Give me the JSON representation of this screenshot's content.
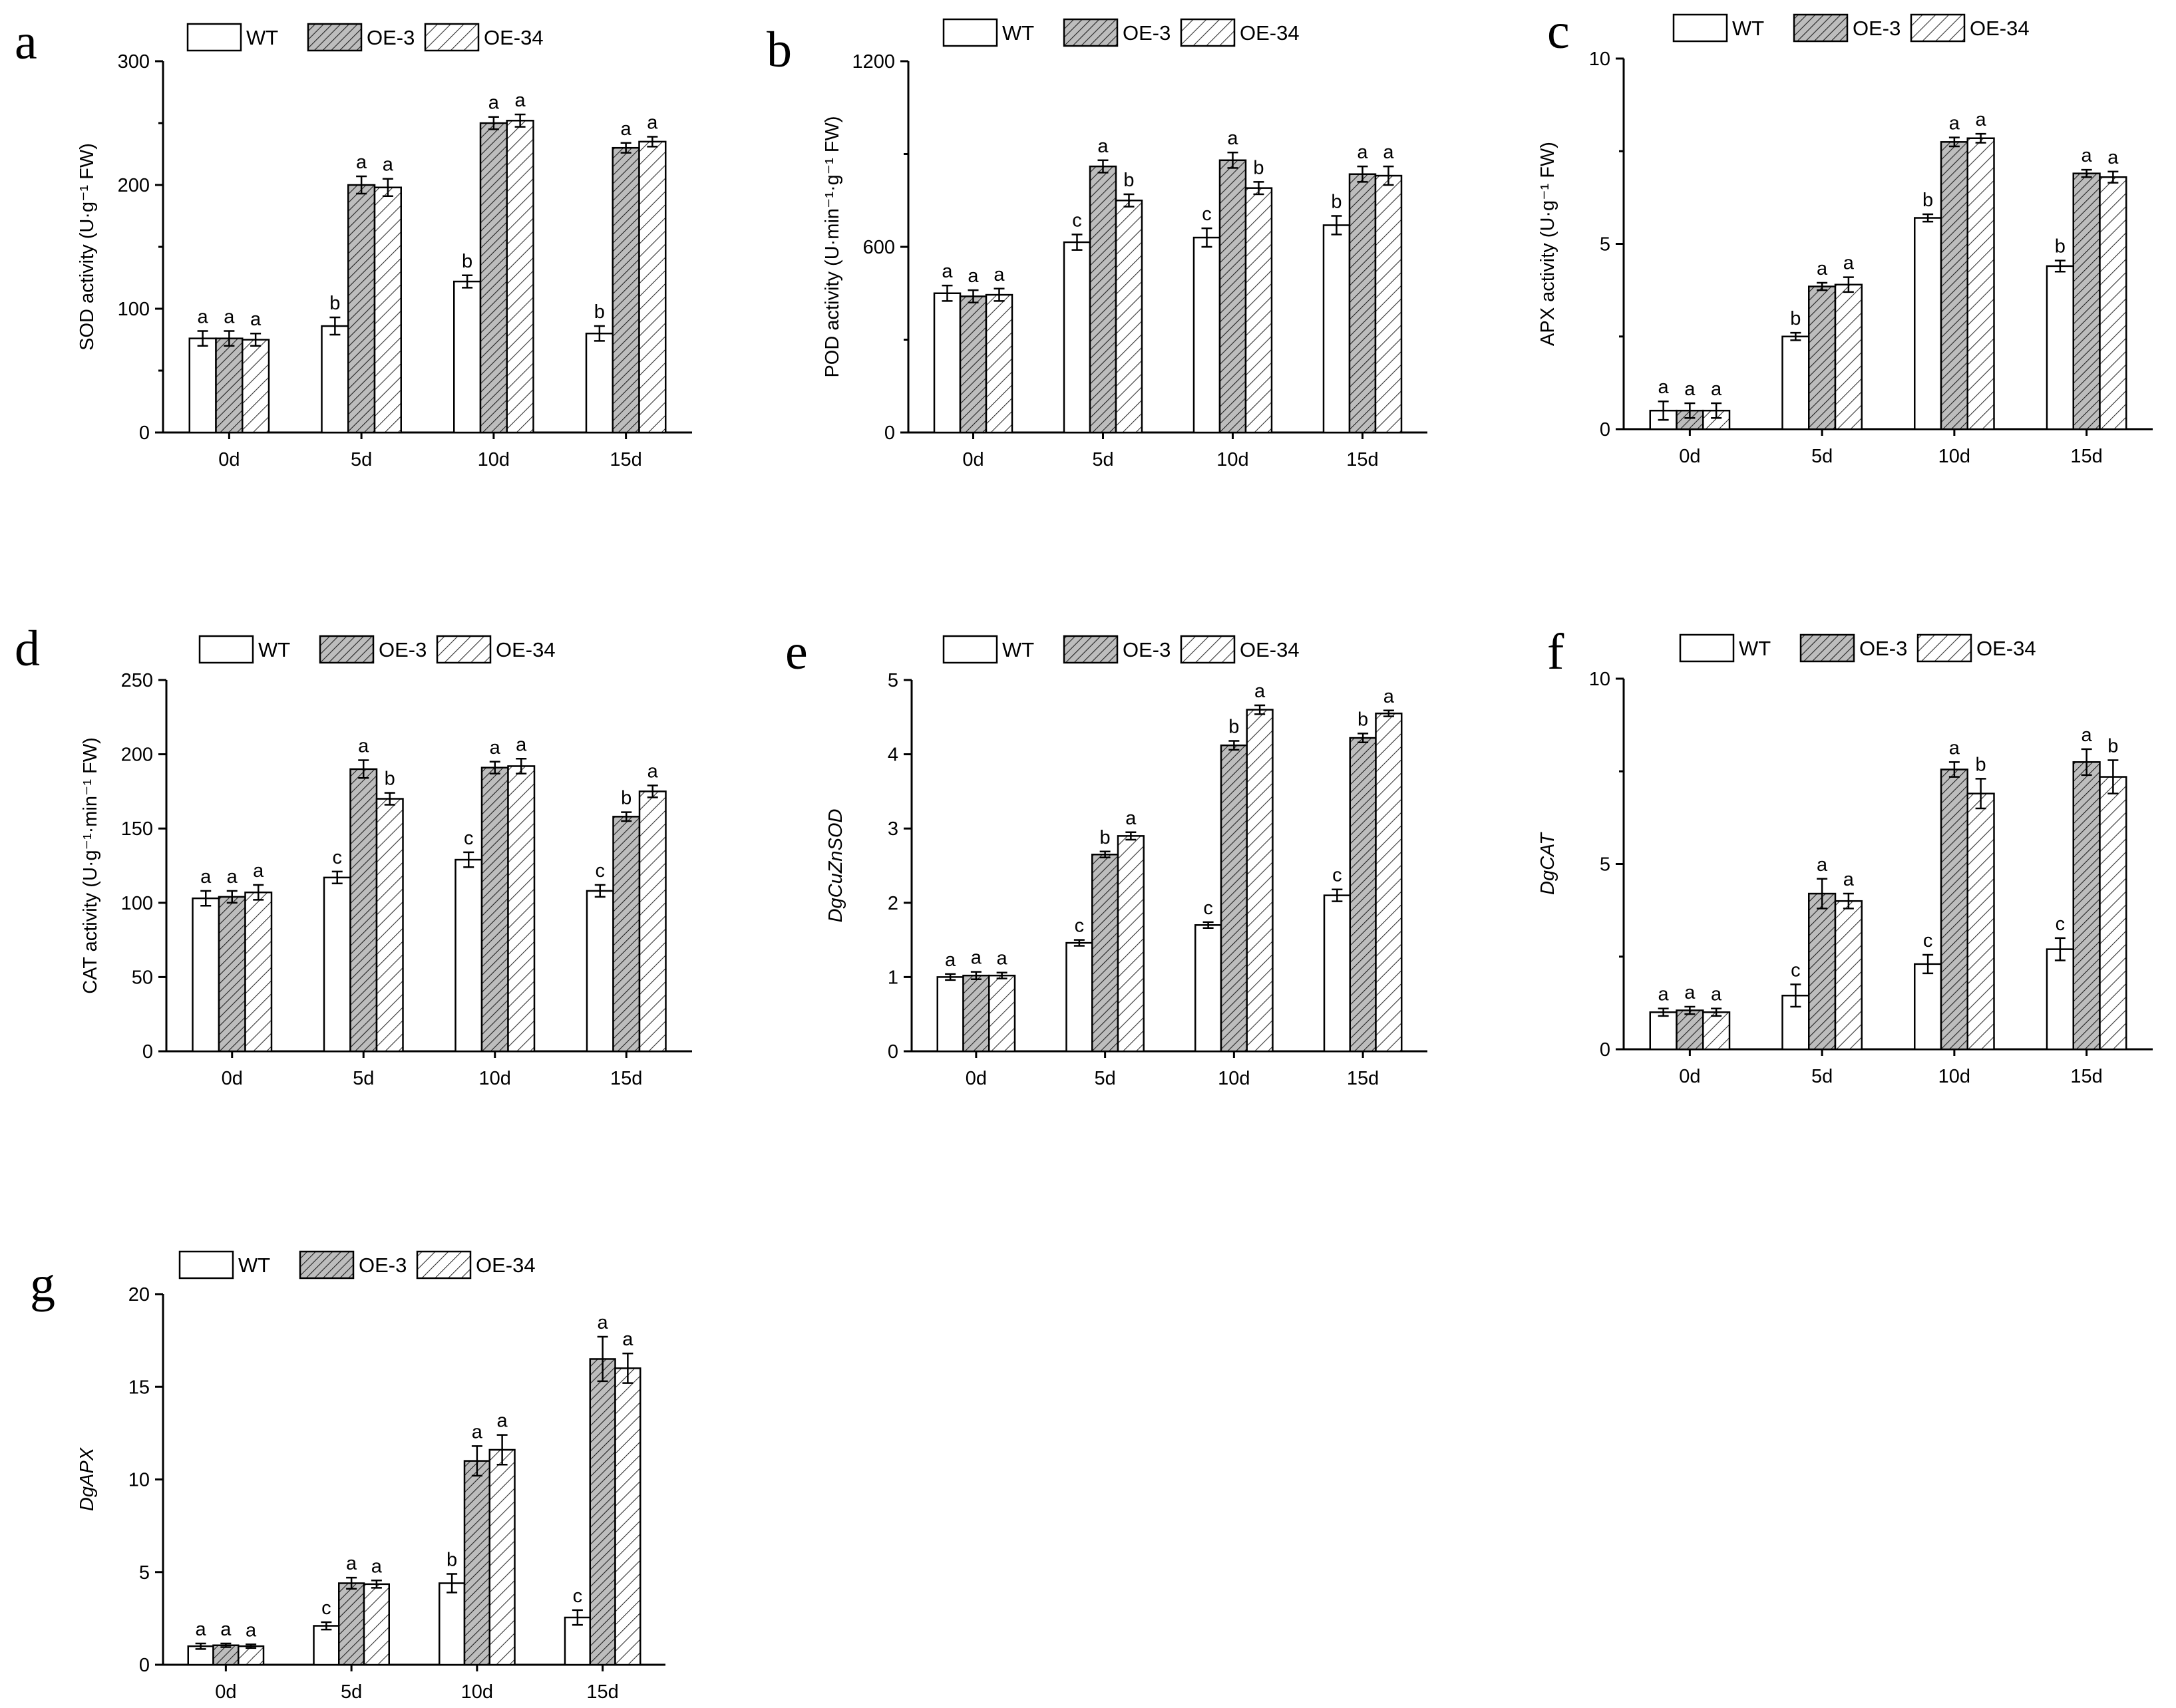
{
  "legend": {
    "series": [
      {
        "key": "wt",
        "name": "WT",
        "fill": "#ffffff",
        "hatch": "none"
      },
      {
        "key": "oe3",
        "name": "OE-3",
        "fill": "#b8b8b8",
        "hatch": "dense"
      },
      {
        "key": "oe34",
        "name": "OE-34",
        "fill": "#ffffff",
        "hatch": "light"
      }
    ]
  },
  "chart_data": [
    {
      "panel": "a",
      "type": "bar",
      "ylabel": "SOD activity (U·g⁻¹ FW)",
      "ylabel_italic": false,
      "categories": [
        "0d",
        "5d",
        "10d",
        "15d"
      ],
      "ylim": [
        0,
        300
      ],
      "yticks": [
        0,
        100,
        200,
        300
      ],
      "yminor": true,
      "series": [
        {
          "name": "WT",
          "values": [
            76,
            86,
            122,
            80
          ],
          "errors": [
            6,
            7,
            5,
            6
          ],
          "labels": [
            "a",
            "b",
            "b",
            "b"
          ]
        },
        {
          "name": "OE-3",
          "values": [
            76,
            200,
            250,
            230
          ],
          "errors": [
            6,
            7,
            5,
            4
          ],
          "labels": [
            "a",
            "a",
            "a",
            "a"
          ]
        },
        {
          "name": "OE-34",
          "values": [
            75,
            198,
            252,
            235
          ],
          "errors": [
            5,
            7,
            5,
            4
          ],
          "labels": [
            "a",
            "a",
            "a",
            "a"
          ]
        }
      ]
    },
    {
      "panel": "b",
      "type": "bar",
      "ylabel": "POD activity (U·min⁻¹·g⁻¹ FW)",
      "ylabel_italic": false,
      "categories": [
        "0d",
        "5d",
        "10d",
        "15d"
      ],
      "ylim": [
        0,
        1200
      ],
      "yticks": [
        0,
        600,
        1200
      ],
      "yminor": true,
      "series": [
        {
          "name": "WT",
          "values": [
            450,
            615,
            630,
            670
          ],
          "errors": [
            25,
            25,
            30,
            30
          ],
          "labels": [
            "a",
            "c",
            "c",
            "b"
          ]
        },
        {
          "name": "OE-3",
          "values": [
            440,
            860,
            880,
            835
          ],
          "errors": [
            20,
            20,
            25,
            25
          ],
          "labels": [
            "a",
            "a",
            "a",
            "a"
          ]
        },
        {
          "name": "OE-34",
          "values": [
            445,
            750,
            790,
            830
          ],
          "errors": [
            20,
            20,
            20,
            30
          ],
          "labels": [
            "a",
            "b",
            "b",
            "a"
          ]
        }
      ]
    },
    {
      "panel": "c",
      "type": "bar",
      "ylabel": "APX activity (U·g⁻¹ FW)",
      "ylabel_italic": false,
      "categories": [
        "0d",
        "5d",
        "10d",
        "15d"
      ],
      "ylim": [
        0,
        10
      ],
      "yticks": [
        0,
        5,
        10
      ],
      "yminor": true,
      "series": [
        {
          "name": "WT",
          "values": [
            0.5,
            2.5,
            5.7,
            4.4
          ],
          "errors": [
            0.25,
            0.1,
            0.1,
            0.15
          ],
          "labels": [
            "a",
            "b",
            "b",
            "b"
          ]
        },
        {
          "name": "OE-3",
          "values": [
            0.5,
            3.85,
            7.75,
            6.9
          ],
          "errors": [
            0.2,
            0.1,
            0.12,
            0.1
          ],
          "labels": [
            "a",
            "a",
            "a",
            "a"
          ]
        },
        {
          "name": "OE-34",
          "values": [
            0.5,
            3.9,
            7.85,
            6.8
          ],
          "errors": [
            0.2,
            0.2,
            0.12,
            0.15
          ],
          "labels": [
            "a",
            "a",
            "a",
            "a"
          ]
        }
      ]
    },
    {
      "panel": "d",
      "type": "bar",
      "ylabel": "CAT activity (U·g⁻¹·min⁻¹ FW)",
      "ylabel_italic": false,
      "categories": [
        "0d",
        "5d",
        "10d",
        "15d"
      ],
      "ylim": [
        0,
        250
      ],
      "yticks": [
        0,
        50,
        100,
        150,
        200,
        250
      ],
      "yminor": false,
      "series": [
        {
          "name": "WT",
          "values": [
            103,
            117,
            129,
            108
          ],
          "errors": [
            5,
            4,
            5,
            4
          ],
          "labels": [
            "a",
            "c",
            "c",
            "c"
          ]
        },
        {
          "name": "OE-3",
          "values": [
            104,
            190,
            191,
            158
          ],
          "errors": [
            4,
            6,
            4,
            3
          ],
          "labels": [
            "a",
            "a",
            "a",
            "b"
          ]
        },
        {
          "name": "OE-34",
          "values": [
            107,
            170,
            192,
            175
          ],
          "errors": [
            5,
            4,
            5,
            4
          ],
          "labels": [
            "a",
            "b",
            "a",
            "a"
          ]
        }
      ]
    },
    {
      "panel": "e",
      "type": "bar",
      "ylabel": "DgCuZnSOD",
      "ylabel_italic": true,
      "categories": [
        "0d",
        "5d",
        "10d",
        "15d"
      ],
      "ylim": [
        0,
        5
      ],
      "yticks": [
        0,
        1,
        2,
        3,
        4,
        5
      ],
      "yminor": false,
      "series": [
        {
          "name": "WT",
          "values": [
            1.0,
            1.46,
            1.7,
            2.1
          ],
          "errors": [
            0.04,
            0.04,
            0.04,
            0.08
          ],
          "labels": [
            "a",
            "c",
            "c",
            "c"
          ]
        },
        {
          "name": "OE-3",
          "values": [
            1.02,
            2.65,
            4.12,
            4.22
          ],
          "errors": [
            0.05,
            0.04,
            0.06,
            0.06
          ],
          "labels": [
            "a",
            "b",
            "b",
            "b"
          ]
        },
        {
          "name": "OE-34",
          "values": [
            1.02,
            2.9,
            4.6,
            4.55
          ],
          "errors": [
            0.04,
            0.05,
            0.06,
            0.04
          ],
          "labels": [
            "a",
            "a",
            "a",
            "a"
          ]
        }
      ]
    },
    {
      "panel": "f",
      "type": "bar",
      "ylabel": "DgCAT",
      "ylabel_italic": true,
      "categories": [
        "0d",
        "5d",
        "10d",
        "15d"
      ],
      "ylim": [
        0,
        10
      ],
      "yticks": [
        0,
        5,
        10
      ],
      "yminor": true,
      "series": [
        {
          "name": "WT",
          "values": [
            1.0,
            1.45,
            2.3,
            2.7
          ],
          "errors": [
            0.1,
            0.3,
            0.25,
            0.3
          ],
          "labels": [
            "a",
            "c",
            "c",
            "c"
          ]
        },
        {
          "name": "OE-3",
          "values": [
            1.05,
            4.2,
            7.55,
            7.75
          ],
          "errors": [
            0.1,
            0.4,
            0.2,
            0.35
          ],
          "labels": [
            "a",
            "a",
            "a",
            "a"
          ]
        },
        {
          "name": "OE-34",
          "values": [
            1.0,
            4.0,
            6.9,
            7.35
          ],
          "errors": [
            0.1,
            0.2,
            0.4,
            0.45
          ],
          "labels": [
            "a",
            "a",
            "b",
            "b"
          ]
        }
      ]
    },
    {
      "panel": "g",
      "type": "bar",
      "ylabel": "DgAPX",
      "ylabel_italic": true,
      "categories": [
        "0d",
        "5d",
        "10d",
        "15d"
      ],
      "ylim": [
        0,
        20
      ],
      "yticks": [
        0,
        5,
        10,
        15,
        20
      ],
      "yminor": false,
      "series": [
        {
          "name": "WT",
          "values": [
            1.0,
            2.1,
            4.4,
            2.55
          ],
          "errors": [
            0.15,
            0.2,
            0.5,
            0.4
          ],
          "labels": [
            "a",
            "c",
            "b",
            "c"
          ]
        },
        {
          "name": "OE-3",
          "values": [
            1.05,
            4.4,
            11.0,
            16.5
          ],
          "errors": [
            0.1,
            0.3,
            0.8,
            1.2
          ],
          "labels": [
            "a",
            "a",
            "a",
            "a"
          ]
        },
        {
          "name": "OE-34",
          "values": [
            1.0,
            4.35,
            11.6,
            16.0
          ],
          "errors": [
            0.1,
            0.2,
            0.8,
            0.8
          ],
          "labels": [
            "a",
            "a",
            "a",
            "a"
          ]
        }
      ]
    }
  ]
}
